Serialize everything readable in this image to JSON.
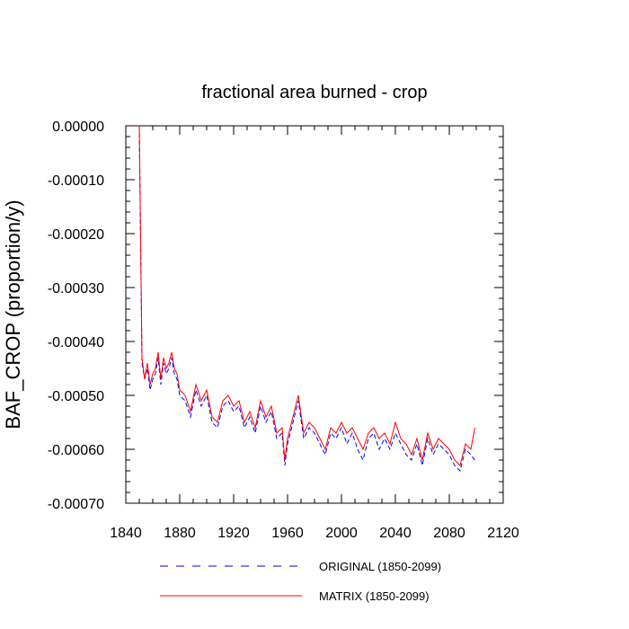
{
  "chart_data": {
    "type": "line",
    "title": "fractional area burned - crop",
    "xlabel": "",
    "ylabel": "BAF_CROP  (proportion/y)",
    "xlim": [
      1840,
      2120
    ],
    "ylim": [
      -0.0007,
      0.0
    ],
    "x_ticks": [
      1840,
      1880,
      1920,
      1960,
      2000,
      2040,
      2080,
      2120
    ],
    "y_ticks": [
      0.0,
      -0.0001,
      -0.0002,
      -0.0003,
      -0.0004,
      -0.0005,
      -0.0006,
      -0.0007
    ],
    "x_tick_labels": [
      "1840",
      "1880",
      "1920",
      "1960",
      "2000",
      "2040",
      "2080",
      "2120"
    ],
    "y_tick_labels": [
      "0.00000",
      "-0.00010",
      "-0.00020",
      "-0.00030",
      "-0.00040",
      "-0.00050",
      "-0.00060",
      "-0.00070"
    ],
    "series": [
      {
        "name": "ORIGINAL (1850-2099)",
        "color": "#0000ff",
        "dash": "dashed",
        "x": [
          1850,
          1852,
          1854,
          1856,
          1858,
          1860,
          1862,
          1864,
          1866,
          1868,
          1870,
          1872,
          1874,
          1876,
          1878,
          1880,
          1884,
          1888,
          1892,
          1896,
          1900,
          1904,
          1908,
          1912,
          1916,
          1920,
          1924,
          1928,
          1932,
          1936,
          1940,
          1944,
          1948,
          1952,
          1956,
          1958,
          1960,
          1964,
          1968,
          1972,
          1976,
          1980,
          1984,
          1988,
          1992,
          1996,
          2000,
          2004,
          2008,
          2012,
          2016,
          2020,
          2024,
          2028,
          2032,
          2036,
          2040,
          2044,
          2048,
          2052,
          2056,
          2060,
          2064,
          2068,
          2072,
          2076,
          2080,
          2084,
          2088,
          2092,
          2096,
          2099
        ],
        "values": [
          0.0,
          -0.00044,
          -0.00047,
          -0.00045,
          -0.00049,
          -0.00047,
          -0.00046,
          -0.00043,
          -0.00048,
          -0.00044,
          -0.00046,
          -0.00045,
          -0.00043,
          -0.00046,
          -0.00047,
          -0.0005,
          -0.00051,
          -0.00054,
          -0.00049,
          -0.00052,
          -0.0005,
          -0.00055,
          -0.00056,
          -0.00052,
          -0.00051,
          -0.00053,
          -0.00052,
          -0.00056,
          -0.00054,
          -0.00057,
          -0.00052,
          -0.00055,
          -0.00053,
          -0.00058,
          -0.00057,
          -0.00063,
          -0.00059,
          -0.00055,
          -0.00051,
          -0.00058,
          -0.00056,
          -0.00057,
          -0.00059,
          -0.00061,
          -0.00057,
          -0.00058,
          -0.00056,
          -0.00059,
          -0.00057,
          -0.0006,
          -0.00062,
          -0.00058,
          -0.00057,
          -0.0006,
          -0.00058,
          -0.0006,
          -0.00057,
          -0.00059,
          -0.00061,
          -0.00062,
          -0.00059,
          -0.00063,
          -0.00058,
          -0.00061,
          -0.00059,
          -0.0006,
          -0.00061,
          -0.00063,
          -0.00064,
          -0.0006,
          -0.00061,
          -0.00062
        ]
      },
      {
        "name": "MATRIX (1850-2099)",
        "color": "#ff0000",
        "dash": "solid",
        "x": [
          1850,
          1852,
          1854,
          1856,
          1858,
          1860,
          1862,
          1864,
          1866,
          1868,
          1870,
          1872,
          1874,
          1876,
          1878,
          1880,
          1884,
          1888,
          1892,
          1896,
          1900,
          1904,
          1908,
          1912,
          1916,
          1920,
          1924,
          1928,
          1932,
          1936,
          1940,
          1944,
          1948,
          1952,
          1956,
          1958,
          1960,
          1964,
          1968,
          1972,
          1976,
          1980,
          1984,
          1988,
          1992,
          1996,
          2000,
          2004,
          2008,
          2012,
          2016,
          2020,
          2024,
          2028,
          2032,
          2036,
          2040,
          2044,
          2048,
          2052,
          2056,
          2060,
          2064,
          2068,
          2072,
          2076,
          2080,
          2084,
          2088,
          2092,
          2096,
          2099
        ],
        "values": [
          0.0,
          -0.00043,
          -0.00047,
          -0.00044,
          -0.00048,
          -0.00046,
          -0.00045,
          -0.00042,
          -0.00047,
          -0.00043,
          -0.00045,
          -0.00044,
          -0.00042,
          -0.00045,
          -0.00046,
          -0.00049,
          -0.0005,
          -0.00053,
          -0.00048,
          -0.00051,
          -0.00049,
          -0.00054,
          -0.00055,
          -0.00051,
          -0.0005,
          -0.00052,
          -0.00051,
          -0.00055,
          -0.00053,
          -0.00056,
          -0.00051,
          -0.00054,
          -0.00052,
          -0.00057,
          -0.00056,
          -0.00062,
          -0.00058,
          -0.00054,
          -0.0005,
          -0.00057,
          -0.00055,
          -0.00056,
          -0.00058,
          -0.0006,
          -0.00056,
          -0.00057,
          -0.00055,
          -0.00057,
          -0.00056,
          -0.00058,
          -0.0006,
          -0.00057,
          -0.00056,
          -0.00058,
          -0.00057,
          -0.00059,
          -0.00055,
          -0.00058,
          -0.00059,
          -0.00061,
          -0.00058,
          -0.00062,
          -0.00057,
          -0.0006,
          -0.00058,
          -0.00059,
          -0.0006,
          -0.00062,
          -0.00063,
          -0.00059,
          -0.0006,
          -0.00056
        ]
      }
    ],
    "legend": {
      "placement": "bottom-center",
      "entries": [
        "ORIGINAL (1850-2099)",
        "MATRIX (1850-2099)"
      ]
    }
  }
}
